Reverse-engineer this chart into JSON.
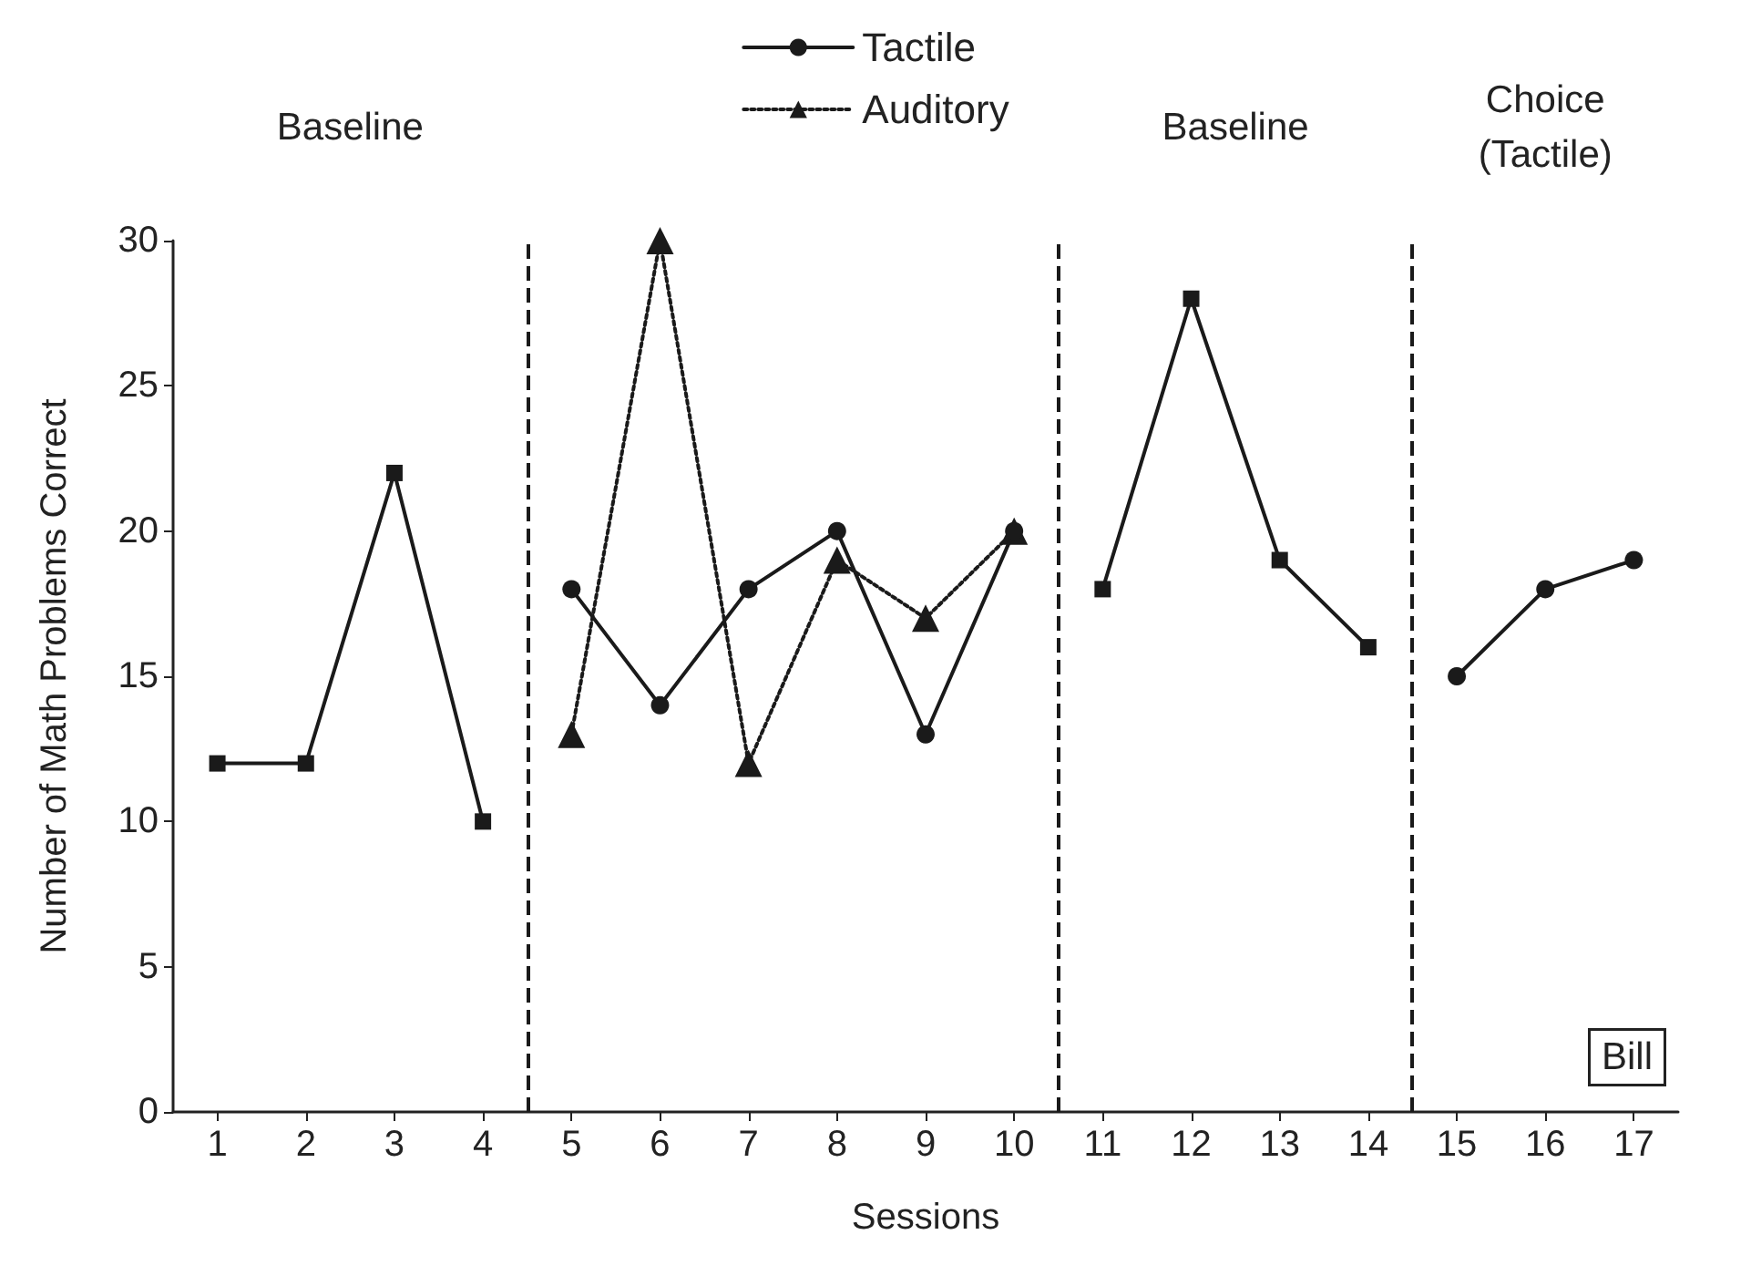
{
  "chart_data": {
    "type": "line",
    "xlabel": "Sessions",
    "ylabel": "Number of Math Problems Correct",
    "xlim": [
      0.5,
      17.5
    ],
    "xticks": [
      1,
      2,
      3,
      4,
      5,
      6,
      7,
      8,
      9,
      10,
      11,
      12,
      13,
      14,
      15,
      16,
      17
    ],
    "ylim": [
      0,
      30
    ],
    "yticks": [
      0,
      5,
      10,
      15,
      20,
      25,
      30
    ],
    "series": [
      {
        "color": "#1a1a1a",
        "marker": "square",
        "line_style": "solid",
        "x": [
          1,
          2,
          3,
          4
        ],
        "values": [
          12,
          12,
          22,
          10
        ]
      },
      {
        "name": "Tactile",
        "color": "#1a1a1a",
        "marker": "circle",
        "line_style": "solid",
        "x": [
          5,
          6,
          7,
          8,
          9,
          10
        ],
        "values": [
          18,
          14,
          18,
          20,
          13,
          20
        ]
      },
      {
        "name": "Auditory",
        "color": "#1a1a1a",
        "marker": "triangle",
        "line_style": "dotted",
        "x": [
          5,
          6,
          7,
          8,
          9,
          10
        ],
        "values": [
          13,
          30,
          12,
          19,
          17,
          20
        ]
      },
      {
        "color": "#1a1a1a",
        "marker": "square",
        "line_style": "solid",
        "x": [
          11,
          12,
          13,
          14
        ],
        "values": [
          18,
          28,
          19,
          16
        ]
      },
      {
        "color": "#1a1a1a",
        "marker": "circle",
        "line_style": "solid",
        "x": [
          15,
          16,
          17
        ],
        "values": [
          15,
          18,
          19
        ]
      }
    ],
    "ref_lines": [
      {
        "axis": "x",
        "value": 4.5,
        "line_style": "dashed",
        "color": "#1a1a1a"
      },
      {
        "axis": "x",
        "value": 10.5,
        "line_style": "dashed",
        "color": "#1a1a1a"
      },
      {
        "axis": "x",
        "value": 14.5,
        "line_style": "dashed",
        "color": "#1a1a1a"
      }
    ],
    "annotations": [
      "Baseline",
      "Baseline",
      "Choice\n(Tactile)",
      "Bill"
    ],
    "grid": false,
    "legend": "top"
  }
}
